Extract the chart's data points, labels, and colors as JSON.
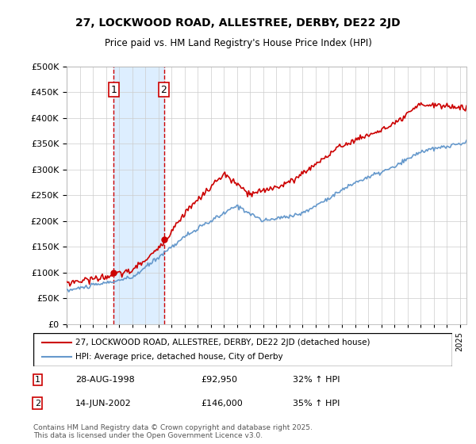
{
  "title": "27, LOCKWOOD ROAD, ALLESTREE, DERBY, DE22 2JD",
  "subtitle": "Price paid vs. HM Land Registry's House Price Index (HPI)",
  "legend_line1": "27, LOCKWOOD ROAD, ALLESTREE, DERBY, DE22 2JD (detached house)",
  "legend_line2": "HPI: Average price, detached house, City of Derby",
  "sale1_date": "28-AUG-1998",
  "sale1_price": 92950,
  "sale1_hpi": "32% ↑ HPI",
  "sale2_date": "14-JUN-2002",
  "sale2_price": 146000,
  "sale2_hpi": "35% ↑ HPI",
  "footer": "Contains HM Land Registry data © Crown copyright and database right 2025.\nThis data is licensed under the Open Government Licence v3.0.",
  "ylim": [
    0,
    500000
  ],
  "red_color": "#cc0000",
  "blue_color": "#6699cc",
  "shade_color": "#ddeeff",
  "grid_color": "#cccccc",
  "background_color": "#ffffff"
}
